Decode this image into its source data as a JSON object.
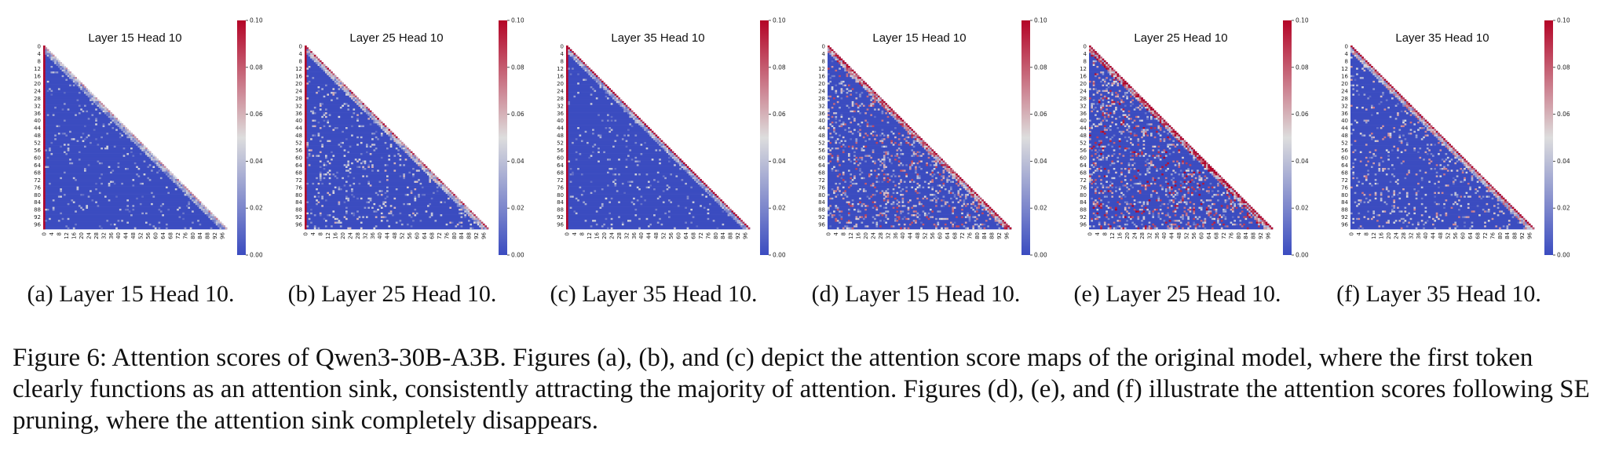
{
  "figure": {
    "caption": "Figure 6: Attention scores of Qwen3-30B-A3B. Figures (a), (b), and (c) depict the attention score maps of the original model, where the first token clearly functions as an attention sink, consistently attracting the majority of attention. Figures (d), (e), and (f) illustrate the attention scores following SE pruning, where the attention sink completely disappears.",
    "subcaptions": [
      "(a) Layer 15 Head 10.",
      "(b) Layer 25 Head 10.",
      "(c) Layer 35 Head 10.",
      "(d) Layer 15 Head 10.",
      "(e) Layer 25 Head 10.",
      "(f) Layer 35 Head 10."
    ]
  },
  "chart_data": [
    {
      "type": "heatmap",
      "title": "Layer 15 Head 10",
      "size": 99,
      "ticks": [
        "0",
        "4",
        "8",
        "12",
        "16",
        "20",
        "24",
        "28",
        "32",
        "36",
        "40",
        "44",
        "48",
        "52",
        "56",
        "60",
        "64",
        "68",
        "72",
        "76",
        "80",
        "84",
        "88",
        "92",
        "96"
      ],
      "colorbar": {
        "min": 0.0,
        "max": 0.1,
        "ticks": [
          "0.00",
          "0.02",
          "0.04",
          "0.06",
          "0.08",
          "0.10"
        ],
        "colormap": "coolwarm",
        "low_color": "#3b4cc0",
        "mid_color": "#dddddd",
        "high_color": "#b40426"
      },
      "pattern": {
        "sink_column": 0,
        "sink_weight": 0.1,
        "diagonal_strength": 0.06,
        "band_strength": 0.03,
        "scatter_density": 0.06
      }
    },
    {
      "type": "heatmap",
      "title": "Layer 25 Head 10",
      "size": 99,
      "ticks": [
        "0",
        "4",
        "8",
        "12",
        "16",
        "20",
        "24",
        "28",
        "32",
        "36",
        "40",
        "44",
        "48",
        "52",
        "56",
        "60",
        "64",
        "68",
        "72",
        "76",
        "80",
        "84",
        "88",
        "92",
        "96"
      ],
      "colorbar": {
        "min": 0.0,
        "max": 0.1,
        "ticks": [
          "0.00",
          "0.02",
          "0.04",
          "0.06",
          "0.08",
          "0.10"
        ],
        "colormap": "coolwarm",
        "low_color": "#3b4cc0",
        "mid_color": "#dddddd",
        "high_color": "#b40426"
      },
      "pattern": {
        "sink_column": 0,
        "sink_weight": 0.1,
        "diagonal_strength": 0.08,
        "band_strength": 0.04,
        "scatter_density": 0.1
      }
    },
    {
      "type": "heatmap",
      "title": "Layer 35 Head 10",
      "size": 99,
      "ticks": [
        "0",
        "4",
        "8",
        "12",
        "16",
        "20",
        "24",
        "28",
        "32",
        "36",
        "40",
        "44",
        "48",
        "52",
        "56",
        "60",
        "64",
        "68",
        "72",
        "76",
        "80",
        "84",
        "88",
        "92",
        "96"
      ],
      "colorbar": {
        "min": 0.0,
        "max": 0.1,
        "ticks": [
          "0.00",
          "0.02",
          "0.04",
          "0.06",
          "0.08",
          "0.10"
        ],
        "colormap": "coolwarm",
        "low_color": "#3b4cc0",
        "mid_color": "#dddddd",
        "high_color": "#b40426"
      },
      "pattern": {
        "sink_column": 0,
        "sink_weight": 0.1,
        "diagonal_strength": 0.1,
        "band_strength": 0.03,
        "scatter_density": 0.05
      }
    },
    {
      "type": "heatmap",
      "title": "Layer 15 Head 10",
      "size": 99,
      "ticks": [
        "0",
        "4",
        "8",
        "12",
        "16",
        "20",
        "24",
        "28",
        "32",
        "36",
        "40",
        "44",
        "48",
        "52",
        "56",
        "60",
        "64",
        "68",
        "72",
        "76",
        "80",
        "84",
        "88",
        "92",
        "96"
      ],
      "colorbar": {
        "min": 0.0,
        "max": 0.1,
        "ticks": [
          "0.00",
          "0.02",
          "0.04",
          "0.06",
          "0.08",
          "0.10"
        ],
        "colormap": "coolwarm",
        "low_color": "#3b4cc0",
        "mid_color": "#dddddd",
        "high_color": "#b40426"
      },
      "pattern": {
        "sink_column": null,
        "sink_weight": 0.0,
        "diagonal_strength": 0.1,
        "band_strength": 0.06,
        "scatter_density": 0.2
      }
    },
    {
      "type": "heatmap",
      "title": "Layer 25 Head 10",
      "size": 99,
      "ticks": [
        "0",
        "4",
        "8",
        "12",
        "16",
        "20",
        "24",
        "28",
        "32",
        "36",
        "40",
        "44",
        "48",
        "52",
        "56",
        "60",
        "64",
        "68",
        "72",
        "76",
        "80",
        "84",
        "88",
        "92",
        "96"
      ],
      "colorbar": {
        "min": 0.0,
        "max": 0.1,
        "ticks": [
          "0.00",
          "0.02",
          "0.04",
          "0.06",
          "0.08",
          "0.10"
        ],
        "colormap": "coolwarm",
        "low_color": "#3b4cc0",
        "mid_color": "#dddddd",
        "high_color": "#b40426"
      },
      "pattern": {
        "sink_column": null,
        "sink_weight": 0.0,
        "diagonal_strength": 0.1,
        "band_strength": 0.07,
        "scatter_density": 0.22
      }
    },
    {
      "type": "heatmap",
      "title": "Layer 35 Head 10",
      "size": 99,
      "ticks": [
        "0",
        "4",
        "8",
        "12",
        "16",
        "20",
        "24",
        "28",
        "32",
        "36",
        "40",
        "44",
        "48",
        "52",
        "56",
        "60",
        "64",
        "68",
        "72",
        "76",
        "80",
        "84",
        "88",
        "92",
        "96"
      ],
      "colorbar": {
        "min": 0.0,
        "max": 0.1,
        "ticks": [
          "0.00",
          "0.02",
          "0.04",
          "0.06",
          "0.08",
          "0.10"
        ],
        "colormap": "coolwarm",
        "low_color": "#3b4cc0",
        "mid_color": "#dddddd",
        "high_color": "#b40426"
      },
      "pattern": {
        "sink_column": null,
        "sink_weight": 0.0,
        "diagonal_strength": 0.1,
        "band_strength": 0.05,
        "scatter_density": 0.12
      }
    }
  ]
}
